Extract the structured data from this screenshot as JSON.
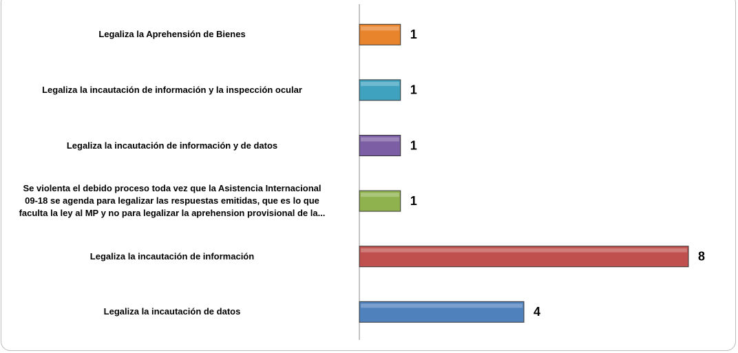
{
  "chart_data": {
    "type": "bar",
    "orientation": "horizontal",
    "categories": [
      "Legaliza la Aprehensión de Bienes",
      "Legaliza la incautación de información y la inspección ocular",
      "Legaliza la incautación de información y de datos",
      "Se violenta el debido proceso toda vez que la Asistencia Internacional\n09-18 se agenda para legalizar las respuestas emitidas, que es lo que\nfaculta la ley al MP y no para legalizar la aprehension provisional de la...",
      "Legaliza la incautación de información",
      "Legaliza la incautación de datos"
    ],
    "values": [
      1,
      1,
      1,
      1,
      8,
      4
    ],
    "colors": [
      "#e8842c",
      "#3fa3bf",
      "#7b5ea3",
      "#8fb24e",
      "#c0504d",
      "#4f81bd"
    ]
  }
}
